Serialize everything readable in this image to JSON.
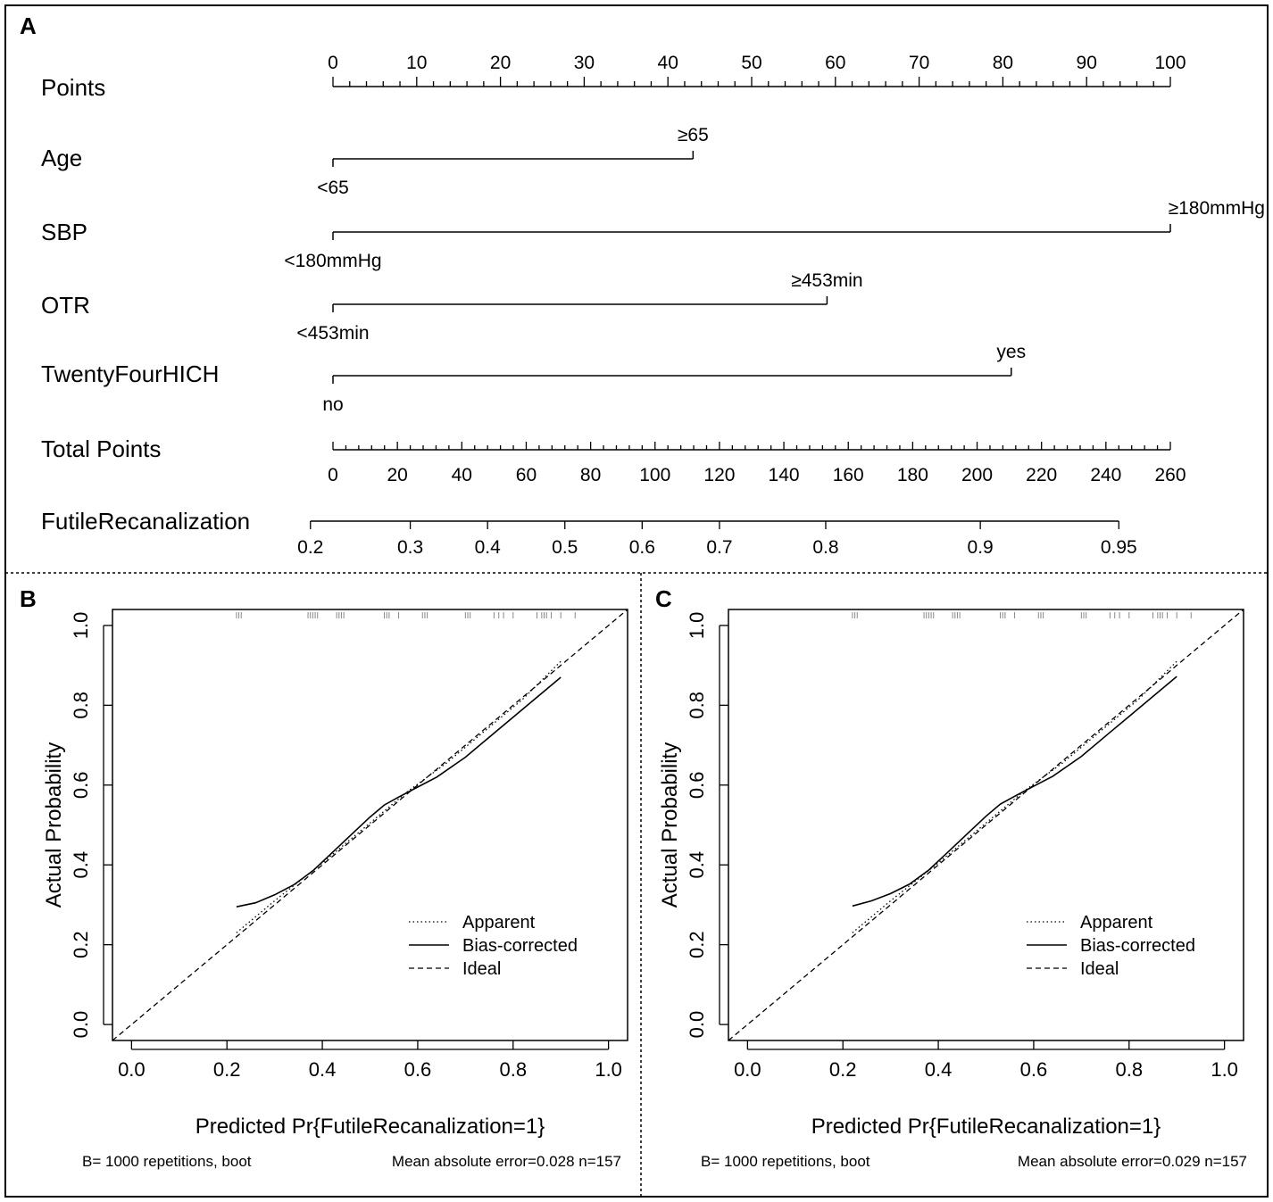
{
  "chart_data": [
    {
      "type": "nomogram",
      "panel_label": "A",
      "points_axis": {
        "label": "Points",
        "min": 0,
        "max": 100,
        "major_step": 10
      },
      "variables": [
        {
          "name": "Age",
          "levels": [
            {
              "label": "<65",
              "points": 0
            },
            {
              "label": "≥65",
              "points": 43
            }
          ]
        },
        {
          "name": "SBP",
          "levels": [
            {
              "label": "<180mmHg",
              "points": 0
            },
            {
              "label": "≥180mmHg",
              "points": 100
            }
          ]
        },
        {
          "name": "OTR",
          "levels": [
            {
              "label": "<453min",
              "points": 0
            },
            {
              "label": "≥453min",
              "points": 59
            }
          ]
        },
        {
          "name": "TwentyFourHICH",
          "levels": [
            {
              "label": "no",
              "points": 0
            },
            {
              "label": "yes",
              "points": 81
            }
          ]
        }
      ],
      "total_points_axis": {
        "label": "Total Points",
        "min": 0,
        "max": 260,
        "major_step": 20,
        "minor_step": 4
      },
      "probability_axis": {
        "label": "FutileRecanalization",
        "ticks": [
          {
            "label": "0.2",
            "total_points": -7
          },
          {
            "label": "0.3",
            "total_points": 24
          },
          {
            "label": "0.4",
            "total_points": 48
          },
          {
            "label": "0.5",
            "total_points": 72
          },
          {
            "label": "0.6",
            "total_points": 96
          },
          {
            "label": "0.7",
            "total_points": 120
          },
          {
            "label": "0.8",
            "total_points": 153
          },
          {
            "label": "0.9",
            "total_points": 201
          },
          {
            "label": "0.95",
            "total_points": 244
          }
        ]
      }
    },
    {
      "type": "line",
      "panel_label": "B",
      "xlabel": "Predicted Pr{FutileRecanalization=1}",
      "ylabel": "Actual Probability",
      "xlim": [
        -0.04,
        1.04
      ],
      "ylim": [
        -0.04,
        1.04
      ],
      "ticks": [
        0.0,
        0.2,
        0.4,
        0.6,
        0.8,
        1.0
      ],
      "tick_labels": [
        "0.0",
        "0.2",
        "0.4",
        "0.6",
        "0.8",
        "1.0"
      ],
      "rug": [
        0.22,
        0.225,
        0.23,
        0.37,
        0.375,
        0.38,
        0.385,
        0.39,
        0.43,
        0.435,
        0.44,
        0.445,
        0.53,
        0.535,
        0.54,
        0.56,
        0.61,
        0.615,
        0.62,
        0.7,
        0.705,
        0.71,
        0.76,
        0.77,
        0.78,
        0.8,
        0.85,
        0.86,
        0.865,
        0.87,
        0.88,
        0.9,
        0.93
      ],
      "series": [
        {
          "name": "Apparent",
          "style": "dotted",
          "x": [
            0.22,
            0.3,
            0.4,
            0.5,
            0.58,
            0.66,
            0.74,
            0.82,
            0.9
          ],
          "y": [
            0.23,
            0.31,
            0.405,
            0.505,
            0.585,
            0.655,
            0.735,
            0.815,
            0.91
          ]
        },
        {
          "name": "Bias-corrected",
          "style": "solid",
          "x": [
            0.22,
            0.26,
            0.3,
            0.34,
            0.38,
            0.42,
            0.46,
            0.5,
            0.53,
            0.56,
            0.6,
            0.64,
            0.7,
            0.76,
            0.82,
            0.9
          ],
          "y": [
            0.295,
            0.305,
            0.325,
            0.35,
            0.385,
            0.43,
            0.475,
            0.52,
            0.55,
            0.57,
            0.595,
            0.62,
            0.67,
            0.73,
            0.79,
            0.87
          ]
        },
        {
          "name": "Ideal",
          "style": "dashed",
          "x": [
            -0.04,
            1.04
          ],
          "y": [
            -0.04,
            1.04
          ]
        }
      ],
      "footer_left": "B= 1000 repetitions, boot",
      "footer_right": "Mean absolute error=0.028 n=157"
    },
    {
      "type": "line",
      "panel_label": "C",
      "xlabel": "Predicted Pr{FutileRecanalization=1}",
      "ylabel": "Actual Probability",
      "xlim": [
        -0.04,
        1.04
      ],
      "ylim": [
        -0.04,
        1.04
      ],
      "ticks": [
        0.0,
        0.2,
        0.4,
        0.6,
        0.8,
        1.0
      ],
      "tick_labels": [
        "0.0",
        "0.2",
        "0.4",
        "0.6",
        "0.8",
        "1.0"
      ],
      "rug": [
        0.22,
        0.225,
        0.23,
        0.37,
        0.375,
        0.38,
        0.385,
        0.39,
        0.43,
        0.435,
        0.44,
        0.445,
        0.53,
        0.535,
        0.54,
        0.56,
        0.61,
        0.615,
        0.62,
        0.7,
        0.705,
        0.71,
        0.76,
        0.77,
        0.78,
        0.8,
        0.85,
        0.86,
        0.865,
        0.87,
        0.88,
        0.9,
        0.93
      ],
      "series": [
        {
          "name": "Apparent",
          "style": "dotted",
          "x": [
            0.22,
            0.3,
            0.4,
            0.5,
            0.58,
            0.66,
            0.74,
            0.82,
            0.9
          ],
          "y": [
            0.23,
            0.31,
            0.405,
            0.505,
            0.585,
            0.655,
            0.735,
            0.815,
            0.91
          ]
        },
        {
          "name": "Bias-corrected",
          "style": "solid",
          "x": [
            0.22,
            0.26,
            0.3,
            0.34,
            0.38,
            0.42,
            0.46,
            0.5,
            0.53,
            0.56,
            0.6,
            0.64,
            0.7,
            0.76,
            0.82,
            0.9
          ],
          "y": [
            0.297,
            0.31,
            0.328,
            0.352,
            0.387,
            0.432,
            0.477,
            0.522,
            0.552,
            0.572,
            0.597,
            0.622,
            0.672,
            0.732,
            0.792,
            0.872
          ]
        },
        {
          "name": "Ideal",
          "style": "dashed",
          "x": [
            -0.04,
            1.04
          ],
          "y": [
            -0.04,
            1.04
          ]
        }
      ],
      "footer_left": "B= 1000 repetitions, boot",
      "footer_right": "Mean absolute error=0.029 n=157"
    }
  ]
}
